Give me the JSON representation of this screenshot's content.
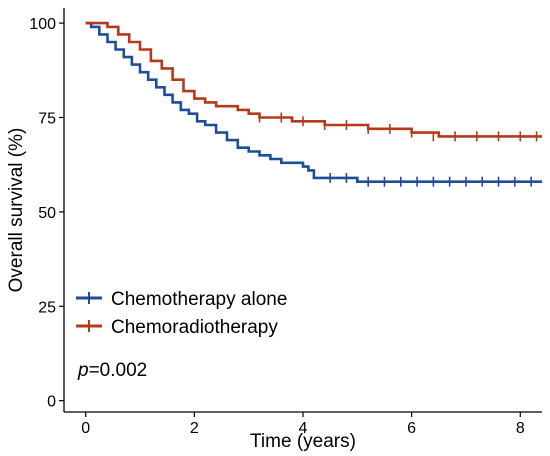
{
  "chart_data": {
    "type": "line",
    "title": "",
    "xlabel": "Time (years)",
    "ylabel": "Overall survival (%)",
    "xlim": [
      -0.4,
      8.4
    ],
    "ylim": [
      -3,
      104
    ],
    "xticks": [
      0,
      2,
      4,
      6,
      8
    ],
    "yticks": [
      0,
      25,
      50,
      75,
      100
    ],
    "grid": false,
    "legend_position": "bottom-left",
    "annotation": {
      "italic": "p",
      "text": "=0.002"
    },
    "series": [
      {
        "name": "Chemotherapy alone",
        "color": "#1f4e99",
        "x": [
          0,
          0.1,
          0.25,
          0.4,
          0.55,
          0.7,
          0.85,
          1.0,
          1.15,
          1.3,
          1.45,
          1.6,
          1.75,
          1.9,
          2.05,
          2.2,
          2.4,
          2.6,
          2.8,
          3.0,
          3.2,
          3.4,
          3.6,
          3.8,
          4.0,
          4.1,
          4.2,
          4.3,
          4.6,
          5.0,
          6.0,
          7.0,
          8.0,
          8.4
        ],
        "y": [
          100,
          99,
          97,
          95,
          93,
          91,
          89,
          87,
          85,
          83,
          81,
          79,
          77,
          76,
          74,
          73,
          71,
          69,
          67,
          66,
          65,
          64,
          63,
          63,
          62,
          61,
          59,
          59,
          59,
          58,
          58,
          58,
          58,
          58
        ],
        "censor_x": [
          4.5,
          4.8,
          5.2,
          5.5,
          5.8,
          6.1,
          6.4,
          6.7,
          7.0,
          7.3,
          7.6,
          7.9,
          8.2
        ],
        "censor_y": [
          59,
          59,
          58,
          58,
          58,
          58,
          58,
          58,
          58,
          58,
          58,
          58,
          58
        ]
      },
      {
        "name": "Chemoradiotherapy",
        "color": "#b33a1c",
        "x": [
          0,
          0.2,
          0.4,
          0.6,
          0.8,
          1.0,
          1.2,
          1.4,
          1.6,
          1.8,
          2.0,
          2.2,
          2.4,
          2.6,
          2.8,
          3.0,
          3.2,
          3.5,
          3.8,
          4.1,
          4.4,
          4.8,
          5.2,
          5.6,
          6.0,
          6.3,
          6.5,
          7.0,
          7.5,
          8.0,
          8.4
        ],
        "y": [
          100,
          100,
          99,
          97,
          95,
          93,
          90,
          88,
          85,
          82,
          80,
          79,
          78,
          78,
          77,
          76,
          75,
          75,
          74,
          74,
          73,
          73,
          72,
          72,
          71,
          71,
          70,
          70,
          70,
          70,
          70
        ],
        "censor_x": [
          3.2,
          3.6,
          4.0,
          4.4,
          4.8,
          5.2,
          5.6,
          6.0,
          6.4,
          6.8,
          7.2,
          7.6,
          8.0,
          8.3
        ],
        "censor_y": [
          75,
          75,
          74,
          73,
          73,
          72,
          72,
          71,
          70,
          70,
          70,
          70,
          70,
          70
        ]
      }
    ]
  }
}
